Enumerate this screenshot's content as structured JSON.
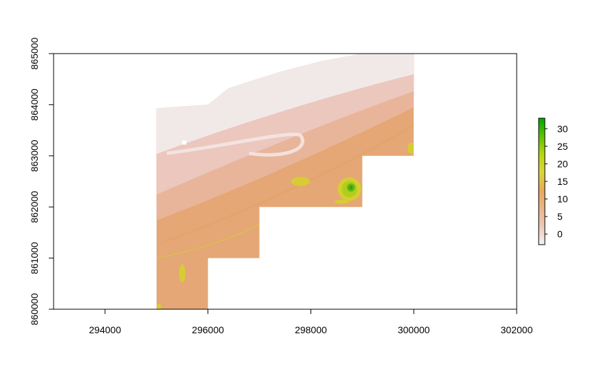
{
  "chart_data": {
    "type": "heatmap",
    "title": "",
    "xlabel": "",
    "ylabel": "",
    "xlim": [
      293000,
      302000
    ],
    "ylim": [
      860000,
      865000
    ],
    "x_ticks": [
      294000,
      296000,
      298000,
      300000,
      302000
    ],
    "y_ticks": [
      860000,
      861000,
      862000,
      863000,
      864000,
      865000
    ],
    "x_tick_labels": [
      "294000",
      "296000",
      "298000",
      "300000",
      "302000"
    ],
    "y_tick_labels": [
      "860000",
      "861000",
      "862000",
      "863000",
      "864000",
      "865000"
    ],
    "grid": false,
    "value_range": [
      -3,
      33
    ],
    "legend": {
      "placement": "right",
      "ticks": [
        0,
        5,
        10,
        15,
        20,
        25,
        30
      ],
      "tick_labels": [
        "0",
        "5",
        "10",
        "15",
        "20",
        "25",
        "30"
      ],
      "colors": [
        "#f2f2f2",
        "#eec9b8",
        "#ebb489",
        "#e9a95b",
        "#dcd53a",
        "#b7d70c",
        "#5cc300",
        "#00a600"
      ]
    },
    "raster_extent_tiles": [
      {
        "x": [
          295000,
          296000
        ],
        "y": [
          860000,
          864000
        ]
      },
      {
        "x": [
          296000,
          297000
        ],
        "y": [
          861000,
          864100
        ]
      },
      {
        "x": [
          297000,
          299000
        ],
        "y": [
          862000,
          864400
        ]
      },
      {
        "x": [
          299000,
          300000
        ],
        "y": [
          863000,
          865000
        ]
      }
    ],
    "features": {
      "sea_color": "#f1e9e8",
      "intertidal_color": "#ecc7bd",
      "mid_color": "#e8b59a",
      "high_color": "#e4a775",
      "dune_colors": [
        "#d6d22a",
        "#a8cf17",
        "#5bb312",
        "#2e9d0e"
      ]
    }
  }
}
